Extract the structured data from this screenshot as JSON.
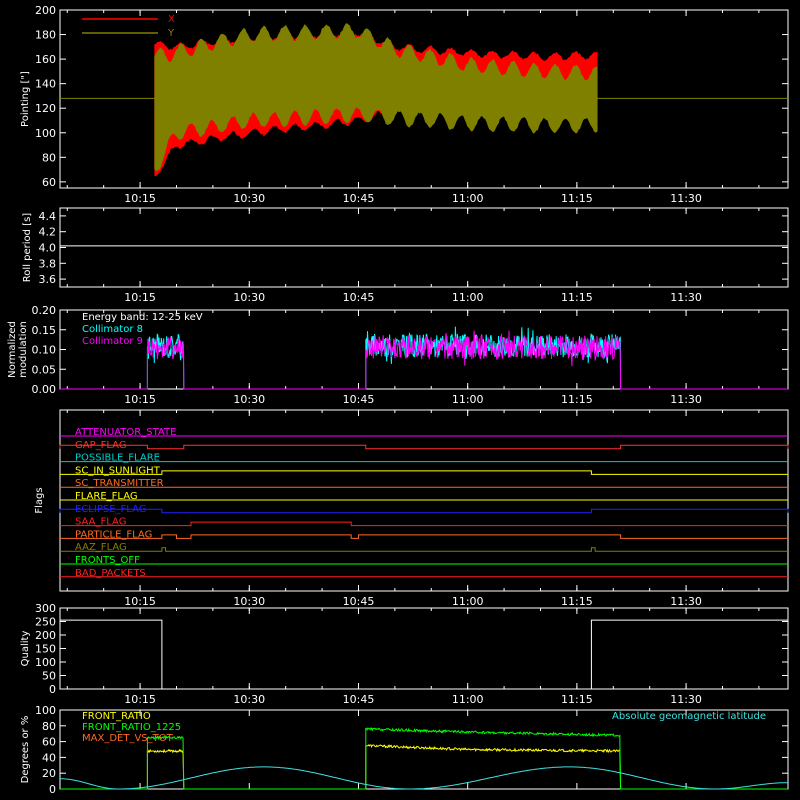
{
  "chart_data": [
    {
      "id": "pointing",
      "type": "line",
      "ylabel": "Pointing [\"]",
      "ylim": [
        55,
        200
      ],
      "yticks": [
        60,
        80,
        100,
        120,
        140,
        160,
        180,
        200
      ],
      "x_range": [
        "10:04",
        "10:44",
        "11:24",
        "11:44"
      ],
      "x_ticks": [
        "10:15",
        "10:30",
        "10:45",
        "11:00",
        "11:15",
        "11:30"
      ],
      "legend": "top-left",
      "colors": {
        "X": "#ff0000",
        "Y": "#808000",
        "axes": "#ffffff"
      },
      "series": [
        {
          "name": "X",
          "envelope": {
            "x": [
              "10:17",
              "10:20",
              "10:30",
              "10:45",
              "10:50",
              "11:00",
              "11:10",
              "11:18"
            ],
            "upper": [
              172,
              170,
              178,
              182,
              170,
              165,
              162,
              163
            ],
            "lower": [
              65,
              90,
              100,
              110,
              118,
              122,
              122,
              124
            ]
          }
        },
        {
          "name": "Y",
          "envelope": {
            "x": [
              "10:17",
              "10:20",
              "10:30",
              "10:45",
              "10:50",
              "11:00",
              "11:10",
              "11:18"
            ],
            "upper": [
              162,
              165,
              180,
              183,
              168,
              155,
              150,
              148
            ],
            "lower": [
              70,
              100,
              110,
              115,
              112,
              108,
              106,
              106
            ]
          },
          "baseline": 128
        }
      ]
    },
    {
      "id": "roll",
      "type": "line",
      "ylabel": "Roll period [s]",
      "ylim": [
        3.5,
        4.5
      ],
      "yticks": [
        3.6,
        3.8,
        4.0,
        4.2,
        4.4
      ],
      "x_ticks": [
        "10:15",
        "10:30",
        "10:45",
        "11:00",
        "11:15",
        "11:30"
      ],
      "series": [
        {
          "name": "",
          "constant": 4.02,
          "color": "#ffffff"
        }
      ]
    },
    {
      "id": "modulation",
      "type": "line",
      "ylabel": [
        "Normalized",
        "modulation"
      ],
      "ylim": [
        0,
        0.2
      ],
      "yticks": [
        0.0,
        0.05,
        0.1,
        0.15,
        0.2
      ],
      "x_ticks": [
        "10:15",
        "10:30",
        "10:45",
        "11:00",
        "11:15",
        "11:30"
      ],
      "legend": "top-left",
      "legend_entries": [
        "Energy band: 12-25 keV",
        "Collimator 8",
        "Collimator 9"
      ],
      "series": [
        {
          "name": "Collimator 8",
          "color": "#00ffff",
          "active": [
            [
              "10:16",
              "10:21"
            ],
            [
              "10:46",
              "11:21"
            ]
          ],
          "mean": 0.11,
          "spread": 0.03
        },
        {
          "name": "Collimator 9",
          "color": "#ff00ff",
          "active": [
            [
              "10:16",
              "10:21"
            ],
            [
              "10:46",
              "11:21"
            ]
          ],
          "mean": 0.105,
          "spread": 0.03
        }
      ]
    },
    {
      "id": "flags",
      "type": "line",
      "ylabel": "Flags",
      "x_ticks": [
        "10:15",
        "10:30",
        "10:45",
        "11:00",
        "11:15",
        "11:30"
      ],
      "flags": [
        {
          "name": "ATTENUATOR_STATE",
          "color": "#ff00ff",
          "on": []
        },
        {
          "name": "GAP_FLAG",
          "color": "#ff3030",
          "on": [
            [
              "10:04",
              "10:16"
            ],
            [
              "10:21",
              "10:46"
            ],
            [
              "11:21",
              "11:44"
            ]
          ]
        },
        {
          "name": "POSSIBLE_FLARE",
          "color": "#00cccc",
          "on": []
        },
        {
          "name": "SC_IN_SUNLIGHT",
          "color": "#ffff00",
          "on": [
            [
              "10:18",
              "11:17"
            ]
          ]
        },
        {
          "name": "SC_TRANSMITTER",
          "color": "#ff6a20",
          "on": []
        },
        {
          "name": "FLARE_FLAG",
          "color": "#ffff00",
          "on": []
        },
        {
          "name": "ECLIPSE_FLAG",
          "color": "#2020ff",
          "on": [
            [
              "10:04",
              "10:18"
            ],
            [
              "11:17",
              "11:44"
            ]
          ]
        },
        {
          "name": "SAA_FLAG",
          "color": "#ff2020",
          "on": [
            [
              "10:22",
              "10:44"
            ]
          ]
        },
        {
          "name": "PARTICLE_FLAG",
          "color": "#ff6a20",
          "on": [
            [
              "10:18",
              "10:20"
            ],
            [
              "10:22",
              "10:44"
            ],
            [
              "10:45",
              "11:21"
            ]
          ]
        },
        {
          "name": "AAZ_FLAG",
          "color": "#808000",
          "on": [
            [
              "10:18",
              "10:18.5"
            ],
            [
              "11:17",
              "11:17.5"
            ]
          ]
        },
        {
          "name": "FRONTS_OFF",
          "color": "#00ff00",
          "on": []
        },
        {
          "name": "BAD_PACKETS",
          "color": "#ff2020",
          "on": []
        }
      ]
    },
    {
      "id": "quality",
      "type": "line",
      "ylabel": "Quality",
      "ylim": [
        0,
        300
      ],
      "yticks": [
        0,
        50,
        100,
        150,
        200,
        250,
        300
      ],
      "x_ticks": [
        "10:15",
        "10:30",
        "10:45",
        "11:00",
        "11:15",
        "11:30"
      ],
      "series": [
        {
          "name": "",
          "color": "#ffffff",
          "x": [
            "10:04",
            "10:18",
            "10:18",
            "11:17",
            "11:17",
            "11:44"
          ],
          "y": [
            255,
            255,
            0,
            0,
            255,
            255
          ]
        }
      ]
    },
    {
      "id": "ratios",
      "type": "line",
      "ylabel": "Degrees or %",
      "ylim": [
        0,
        100
      ],
      "yticks": [
        0,
        20,
        40,
        60,
        80,
        100
      ],
      "x_ticks": [
        "10:15",
        "10:30",
        "10:45",
        "11:00",
        "11:15",
        "11:30"
      ],
      "legend": "top-left",
      "legend_entries": [
        "FRONT_RATIO",
        "FRONT_RATIO_1225",
        "MAX_DET_VS_TOT"
      ],
      "legend_right": "Absolute geomagnetic latitude",
      "series": [
        {
          "name": "FRONT_RATIO",
          "color": "#ffff00",
          "segments": [
            {
              "x": [
                "10:16",
                "10:21"
              ],
              "y": [
                48,
                48
              ]
            },
            {
              "x": [
                "10:46",
                "11:00",
                "11:21"
              ],
              "y": [
                55,
                50,
                48
              ]
            }
          ]
        },
        {
          "name": "FRONT_RATIO_1225",
          "color": "#00ff00",
          "segments": [
            {
              "x": [
                "10:16",
                "10:21"
              ],
              "y": [
                65,
                65
              ]
            },
            {
              "x": [
                "10:46",
                "11:00",
                "11:21"
              ],
              "y": [
                76,
                72,
                68
              ]
            }
          ]
        },
        {
          "name": "MAX_DET_VS_TOT",
          "color": "#ff6a20",
          "segments": []
        },
        {
          "name": "Absolute geomagnetic latitude",
          "color": "#40e0e0",
          "x": [
            "10:04",
            "10:12",
            "10:32",
            "10:52",
            "11:14",
            "11:34",
            "11:44"
          ],
          "y": [
            13,
            0,
            28,
            0,
            28,
            0,
            8
          ]
        }
      ]
    }
  ]
}
